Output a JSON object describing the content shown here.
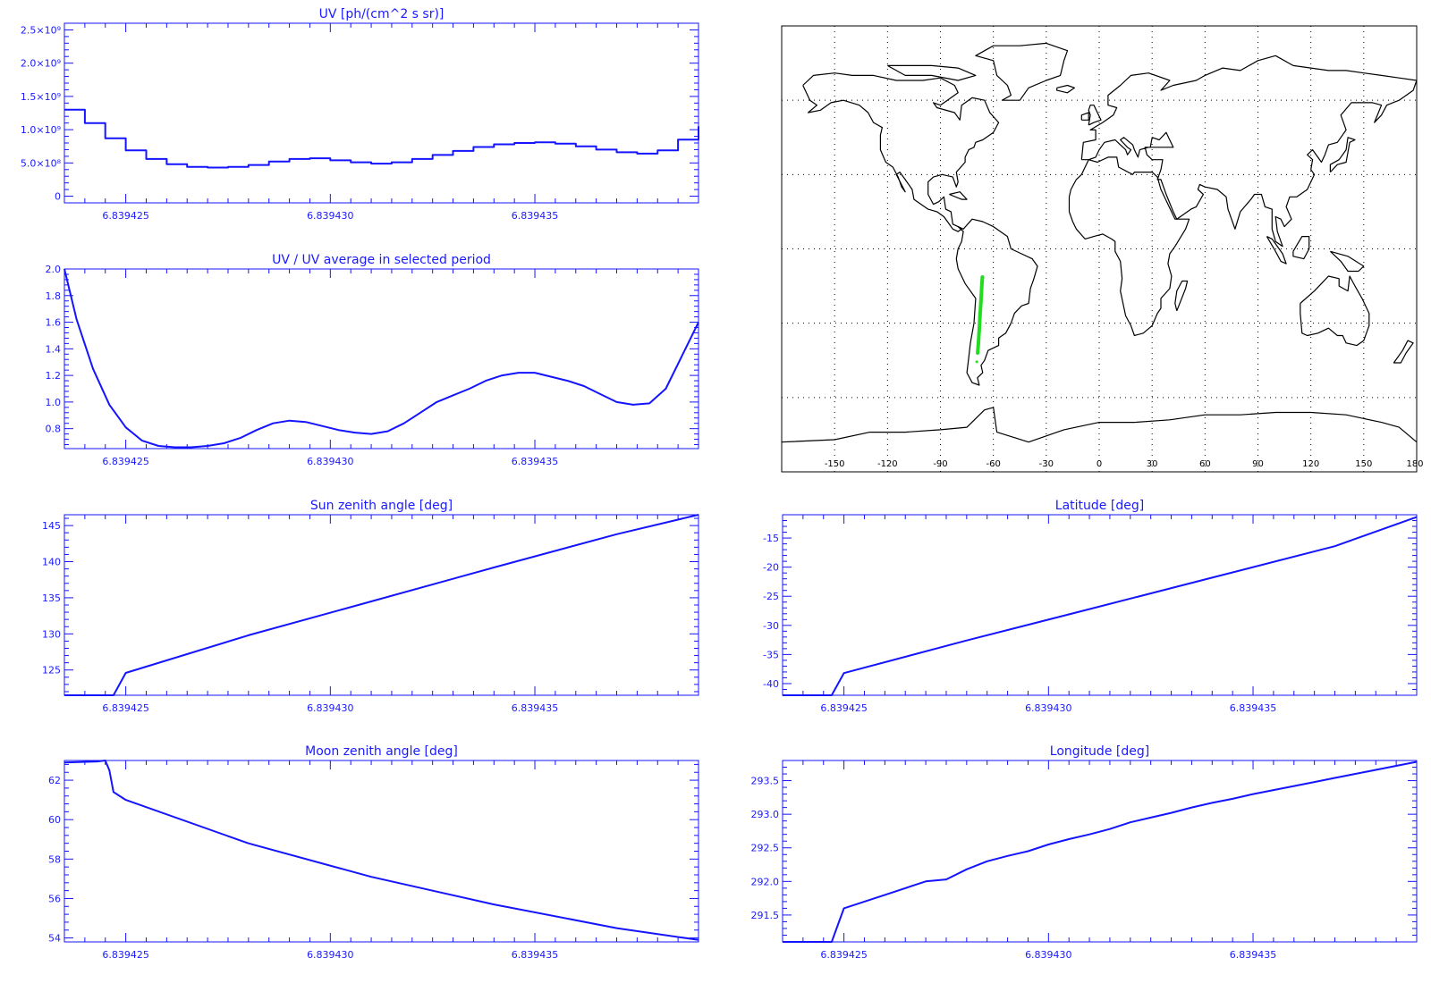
{
  "colors": {
    "plot": "#1414ff",
    "map_frame": "#000000",
    "coast": "#000000",
    "track": "#22dd22",
    "background": "#ffffff"
  },
  "chart_data": [
    {
      "id": "uv",
      "type": "line",
      "step": true,
      "title": "UV [ph/(cm^2 s sr)]",
      "xlabel": "",
      "ylabel": "",
      "xlim": [
        6.8394235,
        6.839439
      ],
      "ylim": [
        -100000000,
        2600000000
      ],
      "xticks": [
        6.839425,
        6.83943,
        6.839435
      ],
      "xtick_labels": [
        "6.839425",
        "6.839430",
        "6.839435"
      ],
      "yticks": [
        0,
        500000000,
        1000000000,
        1500000000,
        2000000000,
        2500000000
      ],
      "ytick_labels": [
        "0",
        "5.0×10⁸",
        "1.0×10⁹",
        "1.5×10⁹",
        "2.0×10⁹",
        "2.5×10⁹"
      ],
      "x": [
        6.8394235,
        6.839424,
        6.8394245,
        6.839425,
        6.8394255,
        6.839426,
        6.8394265,
        6.839427,
        6.8394275,
        6.839428,
        6.8394285,
        6.839429,
        6.8394295,
        6.83943,
        6.8394305,
        6.839431,
        6.8394315,
        6.839432,
        6.8394325,
        6.839433,
        6.8394335,
        6.839434,
        6.8394345,
        6.839435,
        6.8394355,
        6.839436,
        6.8394365,
        6.839437,
        6.8394375,
        6.839438,
        6.8394385,
        6.839439
      ],
      "y": [
        1300000000,
        1100000000,
        870000000,
        690000000,
        560000000,
        480000000,
        440000000,
        430000000,
        440000000,
        470000000,
        520000000,
        560000000,
        570000000,
        540000000,
        510000000,
        490000000,
        510000000,
        560000000,
        620000000,
        680000000,
        740000000,
        780000000,
        800000000,
        810000000,
        790000000,
        750000000,
        700000000,
        660000000,
        640000000,
        690000000,
        850000000,
        1050000000
      ]
    },
    {
      "id": "uv-ratio",
      "type": "line",
      "title": "UV / UV average in selected period",
      "xlabel": "",
      "ylabel": "",
      "xlim": [
        6.8394235,
        6.839439
      ],
      "ylim": [
        0.65,
        2.0
      ],
      "xticks": [
        6.839425,
        6.83943,
        6.839435
      ],
      "xtick_labels": [
        "6.839425",
        "6.839430",
        "6.839435"
      ],
      "yticks": [
        0.8,
        1.0,
        1.2,
        1.4,
        1.6,
        1.8,
        2.0
      ],
      "ytick_labels": [
        "0.8",
        "1.0",
        "1.2",
        "1.4",
        "1.6",
        "1.8",
        "2.0"
      ],
      "x": [
        6.8394235,
        6.8394238,
        6.8394242,
        6.8394246,
        6.839425,
        6.8394254,
        6.8394258,
        6.8394262,
        6.8394266,
        6.839427,
        6.8394274,
        6.8394278,
        6.8394282,
        6.8394286,
        6.839429,
        6.8394294,
        6.8394298,
        6.8394302,
        6.8394306,
        6.839431,
        6.8394314,
        6.8394318,
        6.8394322,
        6.8394326,
        6.839433,
        6.8394334,
        6.8394338,
        6.8394342,
        6.8394346,
        6.839435,
        6.8394354,
        6.8394358,
        6.8394362,
        6.8394366,
        6.839437,
        6.8394374,
        6.8394378,
        6.8394382,
        6.8394386,
        6.839439
      ],
      "y": [
        2.0,
        1.62,
        1.25,
        0.98,
        0.81,
        0.71,
        0.67,
        0.66,
        0.66,
        0.67,
        0.69,
        0.73,
        0.79,
        0.84,
        0.86,
        0.85,
        0.82,
        0.79,
        0.77,
        0.76,
        0.78,
        0.84,
        0.92,
        1.0,
        1.05,
        1.1,
        1.16,
        1.2,
        1.22,
        1.22,
        1.19,
        1.16,
        1.12,
        1.06,
        1.0,
        0.98,
        0.99,
        1.1,
        1.35,
        1.6
      ]
    },
    {
      "id": "sun-zenith",
      "type": "line",
      "title": "Sun zenith angle [deg]",
      "xlabel": "",
      "ylabel": "",
      "xlim": [
        6.8394235,
        6.839439
      ],
      "ylim": [
        121.5,
        146.5
      ],
      "xticks": [
        6.839425,
        6.83943,
        6.839435
      ],
      "xtick_labels": [
        "6.839425",
        "6.839430",
        "6.839435"
      ],
      "yticks": [
        125,
        130,
        135,
        140,
        145
      ],
      "ytick_labels": [
        "125",
        "130",
        "135",
        "140",
        "145"
      ],
      "x": [
        6.8394235,
        6.8394247,
        6.839425,
        6.839428,
        6.839431,
        6.839434,
        6.839437,
        6.839439
      ],
      "y": [
        121.5,
        121.5,
        124.6,
        129.8,
        134.5,
        139.2,
        143.8,
        146.5
      ]
    },
    {
      "id": "moon-zenith",
      "type": "line",
      "title": "Moon zenith angle [deg]",
      "xlabel": "",
      "ylabel": "",
      "xlim": [
        6.8394235,
        6.839439
      ],
      "ylim": [
        53.8,
        63.0
      ],
      "xticks": [
        6.839425,
        6.83943,
        6.839435
      ],
      "xtick_labels": [
        "6.839425",
        "6.839430",
        "6.839435"
      ],
      "yticks": [
        54,
        56,
        58,
        60,
        62
      ],
      "ytick_labels": [
        "54",
        "56",
        "58",
        "60",
        "62"
      ],
      "x": [
        6.8394235,
        6.8394243,
        6.8394245,
        6.8394246,
        6.8394247,
        6.839425,
        6.839428,
        6.839431,
        6.839434,
        6.839437,
        6.839439
      ],
      "y": [
        62.9,
        62.95,
        63.0,
        62.5,
        61.4,
        61.0,
        58.8,
        57.1,
        55.7,
        54.5,
        53.9
      ]
    },
    {
      "id": "latitude",
      "type": "line",
      "title": "Latitude [deg]",
      "xlabel": "",
      "ylabel": "",
      "xlim": [
        6.8394235,
        6.839439
      ],
      "ylim": [
        -42,
        -11
      ],
      "xticks": [
        6.839425,
        6.83943,
        6.839435
      ],
      "xtick_labels": [
        "6.839425",
        "6.839430",
        "6.839435"
      ],
      "yticks": [
        -40,
        -35,
        -30,
        -25,
        -20,
        -15
      ],
      "ytick_labels": [
        "-40",
        "-35",
        "-30",
        "-25",
        "-20",
        "-15"
      ],
      "x": [
        6.8394235,
        6.8394247,
        6.839425,
        6.839428,
        6.839431,
        6.839434,
        6.839437,
        6.839439
      ],
      "y": [
        -42.0,
        -42.0,
        -38.2,
        -32.6,
        -27.2,
        -21.8,
        -16.4,
        -11.4
      ]
    },
    {
      "id": "longitude",
      "type": "line",
      "title": "Longitude [deg]",
      "xlabel": "",
      "ylabel": "",
      "xlim": [
        6.8394235,
        6.839439
      ],
      "ylim": [
        291.1,
        293.8
      ],
      "xticks": [
        6.839425,
        6.83943,
        6.839435
      ],
      "xtick_labels": [
        "6.839425",
        "6.839430",
        "6.839435"
      ],
      "yticks": [
        291.5,
        292.0,
        292.5,
        293.0,
        293.5
      ],
      "ytick_labels": [
        "291.5",
        "292.0",
        "292.5",
        "293.0",
        "293.5"
      ],
      "x": [
        6.8394235,
        6.8394247,
        6.839425,
        6.839426,
        6.839427,
        6.8394275,
        6.839428,
        6.8394285,
        6.839429,
        6.8394295,
        6.83943,
        6.8394305,
        6.839431,
        6.8394315,
        6.839432,
        6.8394325,
        6.839433,
        6.8394335,
        6.839434,
        6.8394345,
        6.839435,
        6.8394355,
        6.839436,
        6.8394365,
        6.839437,
        6.8394375,
        6.839438,
        6.8394385,
        6.839439
      ],
      "y": [
        291.1,
        291.1,
        291.6,
        291.8,
        292.0,
        292.03,
        292.18,
        292.3,
        292.38,
        292.45,
        292.55,
        292.63,
        292.7,
        292.78,
        292.88,
        292.95,
        293.02,
        293.1,
        293.17,
        293.23,
        293.3,
        293.36,
        293.42,
        293.48,
        293.54,
        293.6,
        293.66,
        293.72,
        293.78
      ]
    }
  ],
  "map": {
    "type": "map",
    "projection": "cylindrical",
    "lon_range": [
      -180,
      180
    ],
    "lat_range": [
      -90,
      90
    ],
    "grid_lon": [
      -150,
      -120,
      -90,
      -60,
      -30,
      0,
      30,
      60,
      90,
      120,
      150
    ],
    "grid_lat": [
      -60,
      -30,
      0,
      30,
      60
    ],
    "grid_style": "dotted",
    "tick_labels": [
      "-150",
      "-120",
      "-90",
      "-60",
      "-30",
      "0",
      "30",
      "60",
      "90",
      "120",
      "150",
      "180"
    ],
    "track": {
      "points": [
        [
          -68.9,
          -42.0
        ],
        [
          -68.5,
          -38.2
        ],
        [
          -68.0,
          -32.6
        ],
        [
          -67.6,
          -27.2
        ],
        [
          -67.1,
          -21.8
        ],
        [
          -66.7,
          -16.4
        ],
        [
          -66.2,
          -11.4
        ]
      ]
    }
  }
}
